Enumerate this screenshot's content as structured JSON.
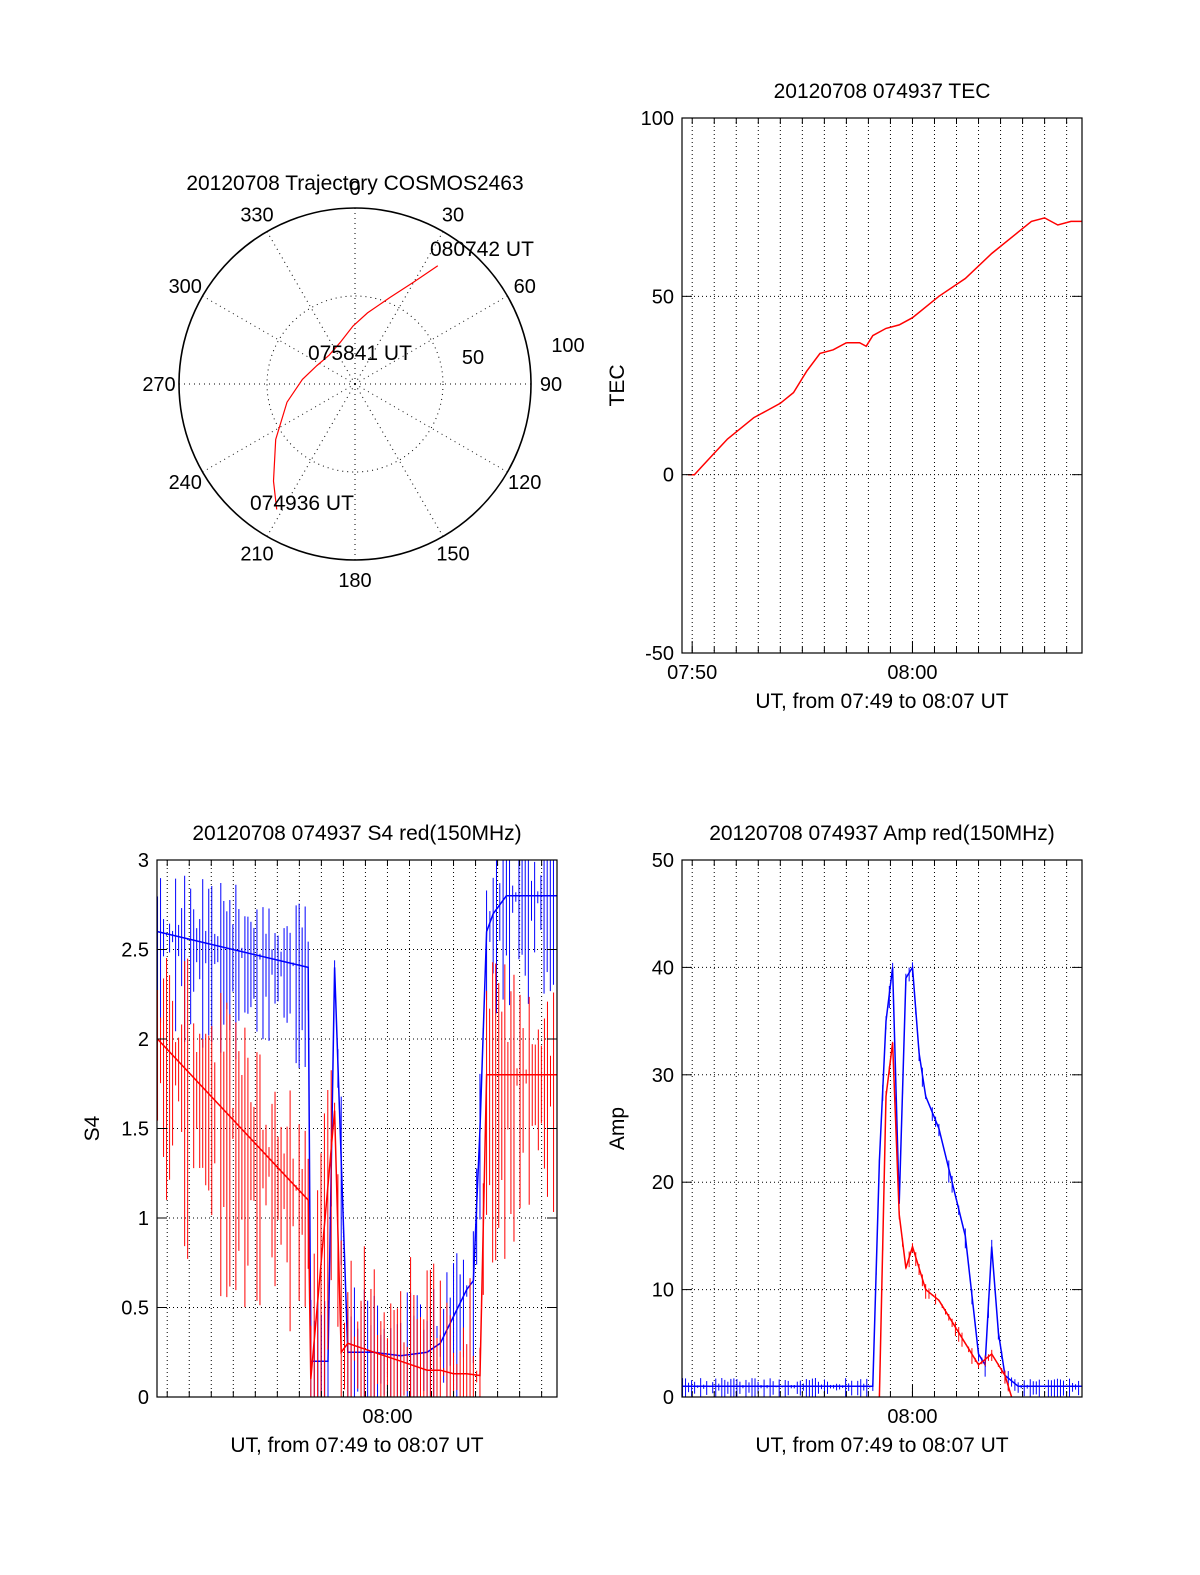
{
  "colors": {
    "red": "#ff0000",
    "blue": "#0000ff",
    "axis": "#000000",
    "grid": "#000000"
  },
  "chart_data": [
    {
      "type": "polar",
      "title": "20120708 Trajectory COSMOS2463",
      "azimuth_labels": [
        "0",
        "30",
        "60",
        "90",
        "120",
        "150",
        "180",
        "210",
        "240",
        "270",
        "300",
        "330"
      ],
      "radial_labels": [
        "50",
        "100"
      ],
      "series": [
        {
          "color": "#ff0000",
          "points": [
            [
              212,
              84
            ],
            [
              220,
              72
            ],
            [
              235,
              55
            ],
            [
              255,
              40
            ],
            [
              275,
              30
            ],
            [
              296,
              24
            ],
            [
              318,
              22
            ],
            [
              340,
              25
            ],
            [
              358,
              33
            ],
            [
              10,
              41
            ],
            [
              22,
              53
            ],
            [
              30,
              67
            ],
            [
              35,
              82
            ]
          ]
        }
      ],
      "annotations": [
        "074936 UT",
        "075841 UT",
        "080742 UT"
      ]
    },
    {
      "type": "line",
      "title": "20120708 074937 TEC",
      "xlabel": "UT, from 07:49 to 08:07 UT",
      "ylabel": "TEC",
      "xlim": [
        7.8256,
        8.1283
      ],
      "ylim": [
        -50,
        100
      ],
      "xticks": [
        {
          "v": 7.8333,
          "label": "07:50"
        },
        {
          "v": 8.0,
          "label": "08:00"
        }
      ],
      "yticks": [
        "-50",
        "0",
        "50",
        "100"
      ],
      "grid": true,
      "series": [
        {
          "color": "#ff0000",
          "x": [
            7.83,
            7.835,
            7.84,
            7.85,
            7.86,
            7.87,
            7.88,
            7.89,
            7.9,
            7.91,
            7.92,
            7.93,
            7.94,
            7.95,
            7.96,
            7.965,
            7.97,
            7.98,
            7.99,
            8.0,
            8.02,
            8.04,
            8.06,
            8.08,
            8.09,
            8.1,
            8.11,
            8.12,
            8.128
          ],
          "y": [
            0,
            0,
            2,
            6,
            10,
            13,
            16,
            18,
            20,
            23,
            29,
            34,
            35,
            37,
            37,
            36,
            39,
            41,
            42,
            44,
            50,
            55,
            62,
            68,
            71,
            72,
            70,
            71,
            71
          ]
        }
      ]
    },
    {
      "type": "line",
      "title": "20120708 074937 S4 red(150MHz)",
      "xlabel": "UT, from 07:49 to 08:07 UT",
      "ylabel": "S4",
      "xlim": [
        7.8256,
        8.1283
      ],
      "ylim": [
        0,
        3
      ],
      "xticks": [
        {
          "v": 8.0,
          "label": "08:00"
        }
      ],
      "yticks": [
        "0",
        "0.5",
        "1",
        "1.5",
        "2",
        "2.5",
        "3"
      ],
      "grid": true,
      "series": [
        {
          "color": "#0000ff",
          "x": [
            7.826,
            7.94,
            7.942,
            7.95,
            7.955,
            7.96,
            7.97,
            7.99,
            8.01,
            8.03,
            8.04,
            8.05,
            8.06,
            8.065,
            8.07,
            8.075,
            8.08,
            8.09,
            8.128
          ],
          "y": [
            2.6,
            2.4,
            0.2,
            0.2,
            0.2,
            2.4,
            0.25,
            0.25,
            0.23,
            0.25,
            0.3,
            0.45,
            0.6,
            0.65,
            1.5,
            2.6,
            2.7,
            2.8,
            2.8
          ]
        },
        {
          "color": "#ff0000",
          "x": [
            7.826,
            7.94,
            7.942,
            7.96,
            7.965,
            7.97,
            7.99,
            8.01,
            8.03,
            8.04,
            8.05,
            8.06,
            8.07,
            8.075,
            8.128
          ],
          "y": [
            2.0,
            1.1,
            0.1,
            1.6,
            0.25,
            0.3,
            0.25,
            0.2,
            0.15,
            0.15,
            0.13,
            0.13,
            0.12,
            1.8,
            1.8
          ]
        }
      ]
    },
    {
      "type": "line",
      "title": "20120708 074937 Amp red(150MHz)",
      "xlabel": "UT, from 07:49 to 08:07 UT",
      "ylabel": "Amp",
      "xlim": [
        7.8256,
        8.1283
      ],
      "ylim": [
        0,
        50
      ],
      "xticks": [
        {
          "v": 8.0,
          "label": "08:00"
        }
      ],
      "yticks": [
        "0",
        "10",
        "20",
        "30",
        "40",
        "50"
      ],
      "grid": true,
      "series": [
        {
          "color": "#0000ff",
          "x": [
            7.826,
            7.97,
            7.975,
            7.98,
            7.985,
            7.99,
            7.995,
            8.0,
            8.005,
            8.01,
            8.02,
            8.03,
            8.04,
            8.05,
            8.055,
            8.06,
            8.065,
            8.07,
            8.08,
            8.128
          ],
          "y": [
            1,
            1,
            22,
            35,
            40,
            18,
            39,
            40,
            32,
            28,
            25,
            20,
            15,
            4,
            3,
            14,
            6,
            2,
            1,
            1
          ]
        },
        {
          "color": "#ff0000",
          "x": [
            7.975,
            7.98,
            7.985,
            7.99,
            7.995,
            8.0,
            8.01,
            8.02,
            8.03,
            8.04,
            8.05,
            8.06,
            8.07,
            8.075
          ],
          "y": [
            0,
            28,
            33,
            17,
            12,
            14,
            10,
            9,
            7,
            5,
            3,
            4,
            2,
            0
          ]
        }
      ]
    }
  ]
}
